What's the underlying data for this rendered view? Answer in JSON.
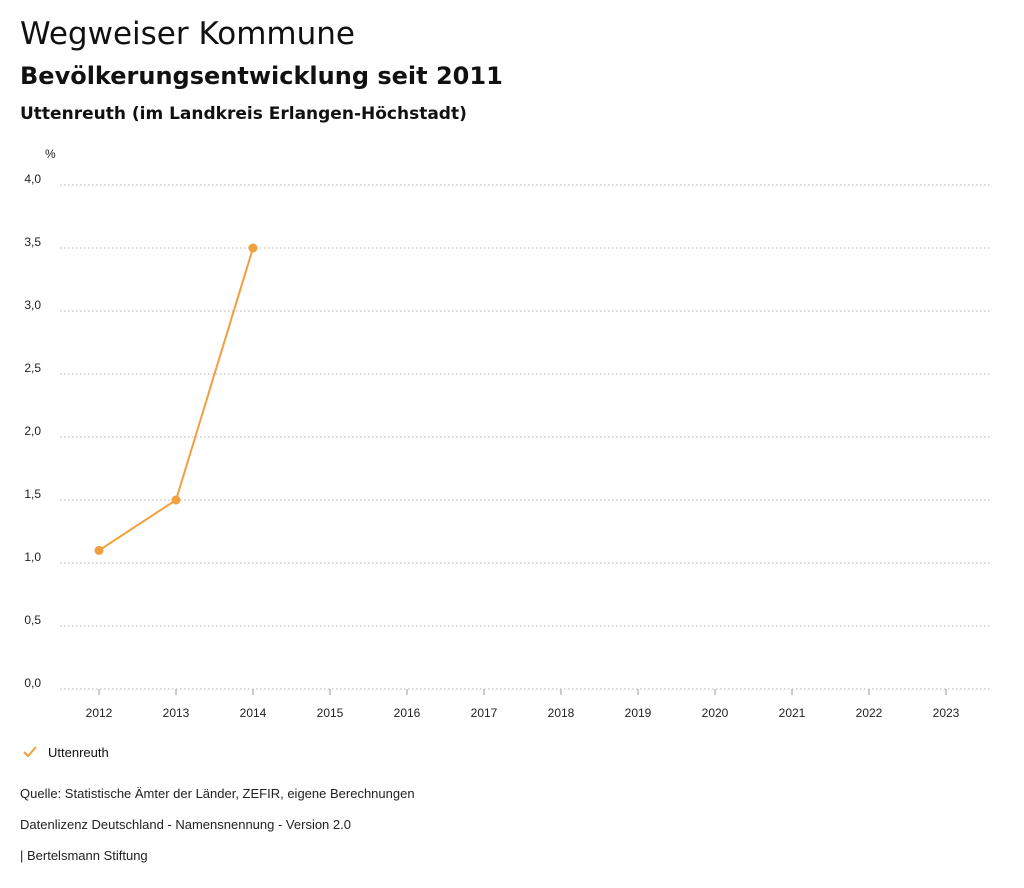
{
  "header": {
    "title": "Wegweiser Kommune",
    "subtitle": "Bevölkerungsentwicklung seit 2011",
    "region": "Uttenreuth (im Landkreis Erlangen-Höchstadt)"
  },
  "chart_data": {
    "type": "line",
    "title": "Bevölkerungsentwicklung seit 2011",
    "ylabel": "%",
    "xlabel": "",
    "categories": [
      "2012",
      "2013",
      "2014",
      "2015",
      "2016",
      "2017",
      "2018",
      "2019",
      "2020",
      "2021",
      "2022",
      "2023"
    ],
    "ylim": [
      0,
      4
    ],
    "yticks": [
      "0,0",
      "0,5",
      "1,0",
      "1,5",
      "2,0",
      "2,5",
      "3,0",
      "3,5",
      "4,0"
    ],
    "grid": true,
    "legend_position": "bottom-left",
    "series": [
      {
        "name": "Uttenreuth",
        "color": "#f0a03c",
        "values": [
          1.1,
          1.5,
          3.5,
          null,
          null,
          null,
          null,
          null,
          null,
          null,
          null,
          null
        ]
      }
    ]
  },
  "legend": {
    "label": "Uttenreuth",
    "icon": "check-icon",
    "color": "#f0a03c"
  },
  "footer": {
    "source": "Quelle: Statistische Ämter der Länder, ZEFIR, eigene Berechnungen",
    "license": "Datenlizenz Deutschland - Namensnennung - Version 2.0",
    "publisher": "| Bertelsmann Stiftung"
  }
}
